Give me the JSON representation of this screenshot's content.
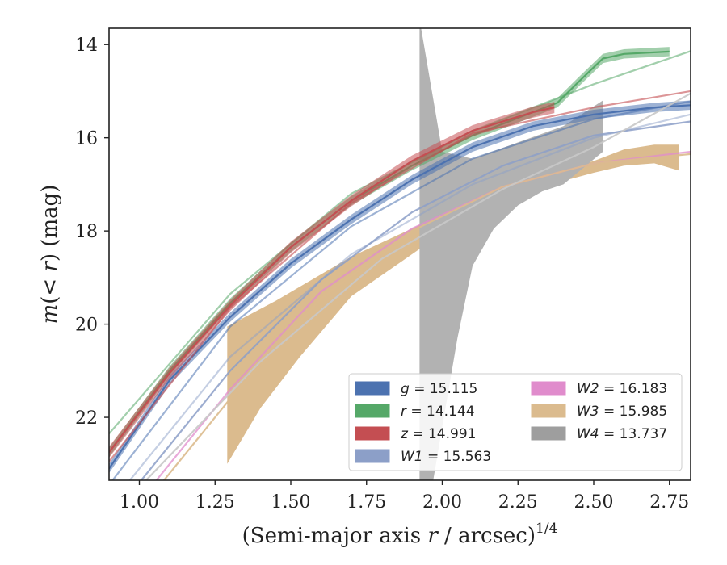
{
  "chart_data": {
    "type": "line",
    "xlabel": "(Semi-major axis r / arcsec)^1/4",
    "xlabel_parts": {
      "pre": "(Semi-major axis ",
      "var": "r",
      "post": " / arcsec)",
      "sup": "1/4"
    },
    "ylabel": "m(< r) (mag)",
    "ylabel_parts": {
      "var": "m",
      "open": "(",
      "lt": "<",
      "var2": "r",
      "close": ")",
      "unit": " (mag)"
    },
    "xlim": [
      0.9,
      2.82
    ],
    "ylim": [
      23.35,
      13.65
    ],
    "y_inverted": true,
    "grid": false,
    "legend_position": "lower-right",
    "x_ticks": [
      1.0,
      1.25,
      1.5,
      1.75,
      2.0,
      2.25,
      2.5,
      2.75
    ],
    "x_tick_labels": [
      "1.00",
      "1.25",
      "1.50",
      "1.75",
      "2.00",
      "2.25",
      "2.50",
      "2.75"
    ],
    "y_ticks": [
      14,
      16,
      18,
      20,
      22
    ],
    "y_tick_labels": [
      "14",
      "16",
      "18",
      "20",
      "22"
    ],
    "legend": [
      {
        "var": "g",
        "value": "15.115",
        "color": "#4c72b0"
      },
      {
        "var": "r",
        "value": "14.144",
        "color": "#55a868"
      },
      {
        "var": "z",
        "value": "14.991",
        "color": "#c44e52"
      },
      {
        "var": "W1",
        "value": "15.563",
        "color": "#8c9fc8"
      },
      {
        "var": "W2",
        "value": "16.183",
        "color": "#e08ccc"
      },
      {
        "var": "W3",
        "value": "15.985",
        "color": "#dbbb8e"
      },
      {
        "var": "W4",
        "value": "13.737",
        "color": "#9e9e9e"
      }
    ],
    "series": [
      {
        "name": "g",
        "color": "#4c72b0",
        "band_halfwidth": 0.1,
        "x": [
          0.9,
          1.1,
          1.3,
          1.5,
          1.7,
          1.9,
          2.1,
          2.3,
          2.5,
          2.7,
          2.82
        ],
        "y": [
          23.1,
          21.2,
          19.85,
          18.7,
          17.75,
          16.9,
          16.2,
          15.75,
          15.5,
          15.35,
          15.3
        ]
      },
      {
        "name": "g model",
        "color": "#4c72b0",
        "opacity": 0.55,
        "x": [
          0.9,
          1.3,
          1.7,
          2.1,
          2.5,
          2.82
        ],
        "y": [
          23.45,
          20.05,
          17.9,
          16.45,
          15.6,
          15.22
        ]
      },
      {
        "name": "r",
        "color": "#55a868",
        "band_halfwidth": 0.1,
        "x": [
          0.9,
          1.1,
          1.3,
          1.5,
          1.7,
          1.9,
          2.1,
          2.3,
          2.38,
          2.45,
          2.53,
          2.6,
          2.75
        ],
        "y": [
          22.75,
          21.0,
          19.55,
          18.35,
          17.35,
          16.6,
          15.95,
          15.45,
          15.25,
          14.8,
          14.3,
          14.2,
          14.15
        ]
      },
      {
        "name": "r model",
        "color": "#55a868",
        "opacity": 0.55,
        "x": [
          0.9,
          1.3,
          1.7,
          2.1,
          2.5,
          2.82
        ],
        "y": [
          22.35,
          19.35,
          17.2,
          15.85,
          14.85,
          14.14
        ]
      },
      {
        "name": "z",
        "color": "#c44e52",
        "band_halfwidth": 0.12,
        "x": [
          0.9,
          1.1,
          1.3,
          1.5,
          1.7,
          1.9,
          2.1,
          2.3,
          2.37
        ],
        "y": [
          22.75,
          21.05,
          19.6,
          18.35,
          17.35,
          16.5,
          15.85,
          15.45,
          15.35
        ]
      },
      {
        "name": "z model",
        "color": "#c44e52",
        "opacity": 0.6,
        "x": [
          0.9,
          1.3,
          1.7,
          2.1,
          2.5,
          2.82
        ],
        "y": [
          22.95,
          19.65,
          17.4,
          15.9,
          15.35,
          15.0
        ]
      },
      {
        "name": "W1",
        "color": "#8c9fc8",
        "opacity": 0.85,
        "x": [
          1.0,
          1.3,
          1.6,
          1.9,
          2.2,
          2.5,
          2.82
        ],
        "y": [
          23.4,
          21.0,
          19.05,
          17.6,
          16.6,
          15.95,
          15.65
        ]
      },
      {
        "name": "W1 model",
        "color": "#8c9fc8",
        "opacity": 0.5,
        "x": [
          0.95,
          1.3,
          1.7,
          2.1,
          2.5,
          2.82
        ],
        "y": [
          23.5,
          20.7,
          18.5,
          17.0,
          16.0,
          15.5
        ]
      },
      {
        "name": "W2",
        "color": "#e08ccc",
        "opacity": 0.75,
        "x": [
          1.05,
          1.3,
          1.6,
          1.9,
          2.2,
          2.5,
          2.82
        ],
        "y": [
          23.4,
          21.4,
          19.3,
          17.95,
          17.05,
          16.55,
          16.3
        ]
      },
      {
        "name": "W3 model",
        "color": "#dbbb8e",
        "opacity": 0.9,
        "x": [
          1.05,
          1.3,
          1.6,
          1.9,
          2.2,
          2.5,
          2.82
        ],
        "y": [
          23.6,
          21.6,
          19.45,
          18.0,
          17.05,
          16.55,
          16.35
        ]
      },
      {
        "name": "W4 model",
        "color": "#c8c8c8",
        "opacity": 0.9,
        "x": [
          1.0,
          1.4,
          1.8,
          2.2,
          2.5,
          2.82
        ],
        "y": [
          23.5,
          20.8,
          18.6,
          17.1,
          16.2,
          15.05
        ]
      }
    ],
    "bands": [
      {
        "name": "W3",
        "color": "#dbbb8e",
        "upper": {
          "x": [
            1.29,
            1.45,
            1.7,
            1.9,
            2.1,
            2.3,
            2.5,
            2.6,
            2.7,
            2.78
          ],
          "y": [
            20.05,
            19.5,
            18.55,
            17.95,
            17.3,
            16.85,
            16.5,
            16.25,
            16.15,
            16.15
          ]
        },
        "lower": {
          "x": [
            1.29,
            1.4,
            1.53,
            1.7,
            1.9,
            2.1,
            2.3,
            2.5,
            2.6,
            2.7,
            2.78
          ],
          "y": [
            23.0,
            21.8,
            20.7,
            19.4,
            18.5,
            17.6,
            17.1,
            16.75,
            16.6,
            16.55,
            16.7
          ]
        }
      },
      {
        "name": "W4",
        "color": "#b2b2b2",
        "upper": {
          "x": [
            1.925,
            1.93,
            2.0,
            2.1,
            2.25,
            2.4,
            2.53
          ],
          "y": [
            13.65,
            13.65,
            16.3,
            16.45,
            16.1,
            15.75,
            15.2
          ]
        },
        "lower": {
          "x": [
            1.925,
            1.97,
            2.0,
            2.05,
            2.1,
            2.17,
            2.25,
            2.33,
            2.4,
            2.53
          ],
          "y": [
            23.35,
            23.35,
            22.2,
            20.3,
            18.75,
            17.95,
            17.45,
            17.15,
            17.0,
            16.3
          ]
        }
      }
    ]
  }
}
